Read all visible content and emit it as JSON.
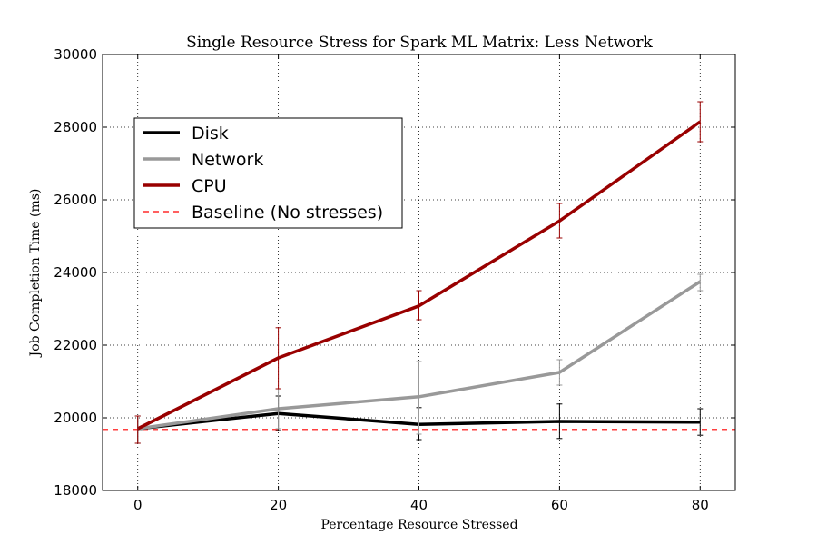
{
  "chart_data": {
    "type": "line",
    "title": "Single Resource Stress for Spark ML Matrix: Less Network",
    "xlabel": "Percentage Resource Stressed",
    "ylabel": "Job Completion Time (ms)",
    "x": [
      0,
      20,
      40,
      60,
      80
    ],
    "xlim": [
      -5,
      85
    ],
    "ylim": [
      18000,
      30000
    ],
    "xticks": [
      0,
      20,
      40,
      60,
      80
    ],
    "yticks": [
      18000,
      20000,
      22000,
      24000,
      26000,
      28000,
      30000
    ],
    "grid": true,
    "legend_position": "upper-left",
    "series": [
      {
        "name": "Disk",
        "color": "#000000",
        "values": [
          19700,
          20120,
          19820,
          19900,
          19880
        ],
        "err_low": [
          19300,
          19650,
          19400,
          19430,
          19520
        ],
        "err_high": [
          20050,
          20600,
          20280,
          20380,
          20250
        ]
      },
      {
        "name": "Network",
        "color": "#999999",
        "values": [
          19700,
          20250,
          20580,
          21250,
          23750
        ],
        "err_low": [
          19300,
          19700,
          19550,
          20900,
          23500
        ],
        "err_high": [
          20050,
          20800,
          21550,
          21600,
          23950
        ]
      },
      {
        "name": "CPU",
        "color": "#990000",
        "values": [
          19700,
          21650,
          23080,
          25420,
          28150
        ],
        "err_low": [
          19300,
          20800,
          22700,
          24950,
          27600
        ],
        "err_high": [
          20050,
          22480,
          23500,
          25900,
          28700
        ]
      }
    ],
    "baseline": {
      "name": "Baseline (No stresses)",
      "value": 19680,
      "color": "#ff0000"
    }
  }
}
